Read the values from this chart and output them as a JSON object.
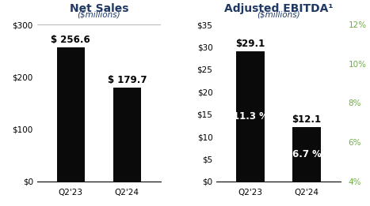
{
  "net_sales": {
    "title": "Net Sales",
    "subtitle": "($millions)",
    "categories": [
      "Q2'23",
      "Q2'24"
    ],
    "values": [
      256.6,
      179.7
    ],
    "bar_color": "#0a0a0a",
    "ylim": [
      0,
      300
    ],
    "yticks": [
      0,
      100,
      200,
      300
    ],
    "ytick_labels": [
      "$0",
      "$100",
      "$200",
      "$300"
    ],
    "value_labels": [
      "$ 256.6",
      "$ 179.7"
    ],
    "value_label_color": "#000000"
  },
  "ebitda": {
    "title": "Adjusted EBITDA¹",
    "subtitle": "($millions)",
    "categories": [
      "Q2'23",
      "Q2'24"
    ],
    "values": [
      29.1,
      12.1
    ],
    "bar_color": "#0a0a0a",
    "ylim": [
      0,
      35
    ],
    "yticks": [
      0,
      5,
      10,
      15,
      20,
      25,
      30,
      35
    ],
    "ytick_labels": [
      "$0",
      "$5",
      "$10",
      "$15",
      "$20",
      "$25",
      "$30",
      "$35"
    ],
    "value_labels": [
      "$29.1",
      "$12.1"
    ],
    "pct_labels": [
      "11.3 %",
      "6.7 %"
    ],
    "pct_values": [
      11.3,
      6.7
    ],
    "right_ylim": [
      4,
      12
    ],
    "right_yticks": [
      4,
      6,
      8,
      10,
      12
    ],
    "right_ytick_labels": [
      "4%",
      "6%",
      "8%",
      "10%",
      "12%"
    ],
    "right_axis_color": "#70ad47"
  },
  "background_color": "#ffffff",
  "title_color": "#1f3864",
  "bar_label_fontsize": 8.5,
  "axis_label_fontsize": 7.5,
  "title_fontsize": 10,
  "subtitle_fontsize": 7.5
}
